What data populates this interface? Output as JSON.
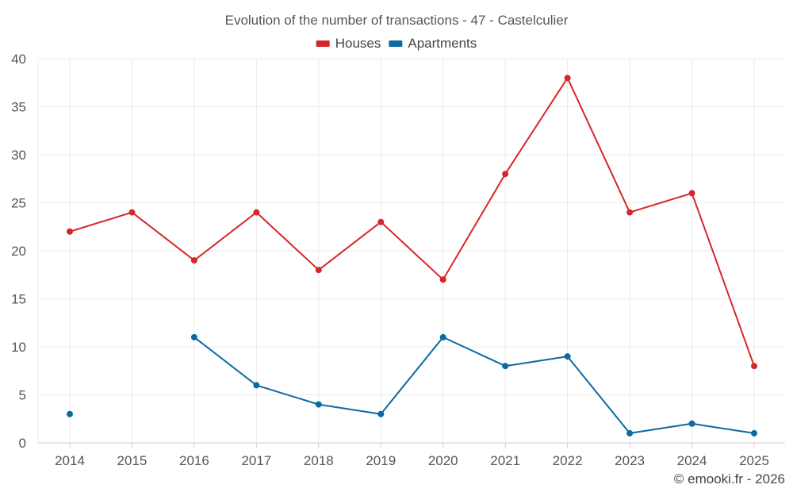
{
  "chart_data": {
    "type": "line",
    "title": "Evolution of the number of transactions - 47 - Castelculier",
    "categories": [
      "2014",
      "2015",
      "2016",
      "2017",
      "2018",
      "2019",
      "2020",
      "2021",
      "2022",
      "2023",
      "2024",
      "2025"
    ],
    "series": [
      {
        "name": "Houses",
        "color": "#d62728",
        "values": [
          22,
          24,
          19,
          24,
          18,
          23,
          17,
          28,
          38,
          24,
          26,
          8
        ]
      },
      {
        "name": "Apartments",
        "color": "#0b6aa2",
        "values": [
          3,
          null,
          11,
          6,
          4,
          3,
          11,
          8,
          9,
          1,
          2,
          1
        ]
      }
    ],
    "xlabel": "",
    "ylabel": "",
    "ylim": [
      0,
      40
    ],
    "yticks": [
      0,
      5,
      10,
      15,
      20,
      25,
      30,
      35,
      40
    ],
    "grid": true,
    "legend": "top-center"
  },
  "footer": {
    "credit": "© emooki.fr - 2026"
  }
}
